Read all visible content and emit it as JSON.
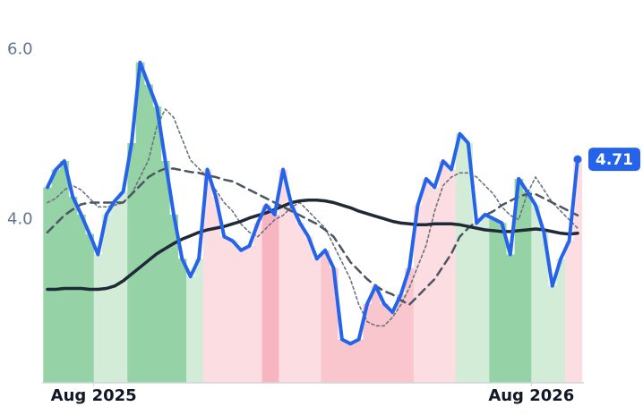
{
  "chart_data": {
    "type": "line",
    "x": [
      0,
      1,
      2,
      3,
      4,
      5,
      6,
      7,
      8,
      9,
      10,
      11,
      12,
      13,
      14,
      15,
      16,
      17,
      18,
      19,
      20,
      21,
      22,
      23,
      24,
      25,
      26,
      27,
      28,
      29,
      30,
      31,
      32,
      33,
      34,
      35,
      36,
      37,
      38,
      39,
      40,
      41,
      42,
      43,
      44,
      45,
      46,
      47,
      48,
      49,
      50,
      51,
      52,
      53,
      54,
      55,
      56,
      57,
      58,
      59,
      60,
      61,
      62,
      63
    ],
    "xlim": [
      0,
      63
    ],
    "xticks": [
      {
        "value": 5.5,
        "label": "Aug 2025"
      },
      {
        "value": 57.5,
        "label": "Aug 2026"
      }
    ],
    "ylim": [
      2.08,
      6.3
    ],
    "yticks": [
      {
        "value": 4,
        "label": "4.0"
      },
      {
        "value": 6,
        "label": "6.0"
      }
    ],
    "bar_colors": [
      "#95d3a6",
      "#95d3a6",
      "#95d3a6",
      "#95d3a6",
      "#95d3a6",
      "#95d3a6",
      "#d2ecd8",
      "#d2ecd8",
      "#d2ecd8",
      "#d2ecd8",
      "#95d3a6",
      "#95d3a6",
      "#95d3a6",
      "#95d3a6",
      "#95d3a6",
      "#95d3a6",
      "#95d3a6",
      "#d2ecd8",
      "#d2ecd8",
      "#fcdde2",
      "#fcdde2",
      "#fcdde2",
      "#fcdde2",
      "#fcdde2",
      "#fcdde2",
      "#fcdde2",
      "#f7b5c1",
      "#f7b5c1",
      "#fcdde2",
      "#fcdde2",
      "#fcdde2",
      "#fcdde2",
      "#fcdde2",
      "#f9c6ce",
      "#f9c6ce",
      "#f9c6ce",
      "#f9c6ce",
      "#f9c6ce",
      "#f9c6ce",
      "#f9c6ce",
      "#f9c6ce",
      "#f9c6ce",
      "#f9c6ce",
      "#f9c6ce",
      "#fcdde2",
      "#fcdde2",
      "#fcdde2",
      "#fcdde2",
      "#fcdde2",
      "#d2ecd8",
      "#d2ecd8",
      "#d2ecd8",
      "#d2ecd8",
      "#95d3a6",
      "#95d3a6",
      "#95d3a6",
      "#95d3a6",
      "#95d3a6",
      "#d2ecd8",
      "#d2ecd8",
      "#d2ecd8",
      "#d2ecd8",
      "#fcdde2",
      "#fcdde2"
    ],
    "series": [
      {
        "color": "#2563eb",
        "values": [
          4.38,
          4.59,
          4.69,
          4.27,
          4.06,
          3.83,
          3.59,
          4.06,
          4.22,
          4.33,
          4.9,
          5.85,
          5.59,
          5.33,
          4.69,
          4.06,
          3.54,
          3.33,
          3.54,
          4.59,
          4.27,
          3.8,
          3.75,
          3.64,
          3.69,
          3.96,
          4.17,
          4.06,
          4.59,
          4.17,
          3.96,
          3.8,
          3.54,
          3.64,
          3.43,
          2.59,
          2.54,
          2.59,
          3.01,
          3.22,
          3.01,
          2.91,
          3.12,
          3.43,
          4.17,
          4.48,
          4.38,
          4.69,
          4.59,
          5.01,
          4.9,
          3.96,
          4.06,
          4.01,
          3.96,
          3.59,
          4.48,
          4.33,
          4.17,
          3.85,
          3.22,
          3.54,
          3.75,
          4.71
        ],
        "value_label": "4.71"
      },
      {
        "color": "#1f2937",
        "values": [
          3.18,
          3.18,
          3.19,
          3.19,
          3.19,
          3.18,
          3.18,
          3.19,
          3.22,
          3.28,
          3.36,
          3.44,
          3.52,
          3.6,
          3.66,
          3.72,
          3.77,
          3.81,
          3.85,
          3.88,
          3.9,
          3.92,
          3.95,
          3.98,
          4.02,
          4.05,
          4.08,
          4.12,
          4.16,
          4.2,
          4.22,
          4.23,
          4.23,
          4.22,
          4.2,
          4.17,
          4.14,
          4.1,
          4.07,
          4.04,
          4.01,
          3.98,
          3.96,
          3.95,
          3.94,
          3.94,
          3.95,
          3.95,
          3.95,
          3.94,
          3.92,
          3.9,
          3.88,
          3.87,
          3.86,
          3.86,
          3.87,
          3.88,
          3.89,
          3.88,
          3.86,
          3.84,
          3.83,
          3.84
        ]
      },
      {
        "color": "#4b5563",
        "values": [
          3.85,
          3.95,
          4.05,
          4.12,
          4.18,
          4.2,
          4.2,
          4.2,
          4.2,
          4.2,
          4.3,
          4.4,
          4.5,
          4.56,
          4.6,
          4.6,
          4.58,
          4.56,
          4.55,
          4.52,
          4.5,
          4.47,
          4.45,
          4.4,
          4.35,
          4.3,
          4.25,
          4.2,
          4.15,
          4.1,
          4.05,
          4.0,
          3.95,
          3.88,
          3.8,
          3.65,
          3.5,
          3.4,
          3.3,
          3.22,
          3.16,
          3.12,
          3.05,
          3.0,
          3.1,
          3.2,
          3.3,
          3.45,
          3.6,
          3.8,
          3.9,
          3.98,
          4.05,
          4.1,
          4.17,
          4.22,
          4.27,
          4.3,
          4.3,
          4.25,
          4.2,
          4.15,
          4.1,
          4.05
        ]
      },
      {
        "color": "#6b7280",
        "values": [
          4.2,
          4.25,
          4.35,
          4.4,
          4.35,
          4.25,
          4.15,
          4.15,
          4.17,
          4.2,
          4.3,
          4.5,
          4.7,
          5.1,
          5.3,
          5.2,
          4.95,
          4.7,
          4.6,
          4.5,
          4.35,
          4.2,
          4.1,
          3.95,
          3.85,
          3.8,
          3.9,
          4.0,
          4.05,
          4.15,
          4.2,
          4.1,
          4.0,
          3.9,
          3.7,
          3.5,
          3.3,
          3.0,
          2.8,
          2.75,
          2.75,
          2.85,
          3.0,
          3.2,
          3.45,
          3.7,
          4.1,
          4.4,
          4.5,
          4.55,
          4.55,
          4.5,
          4.4,
          4.3,
          4.15,
          4.05,
          4.0,
          4.3,
          4.5,
          4.35,
          4.2,
          4.1,
          4.0,
          3.9
        ]
      }
    ]
  }
}
